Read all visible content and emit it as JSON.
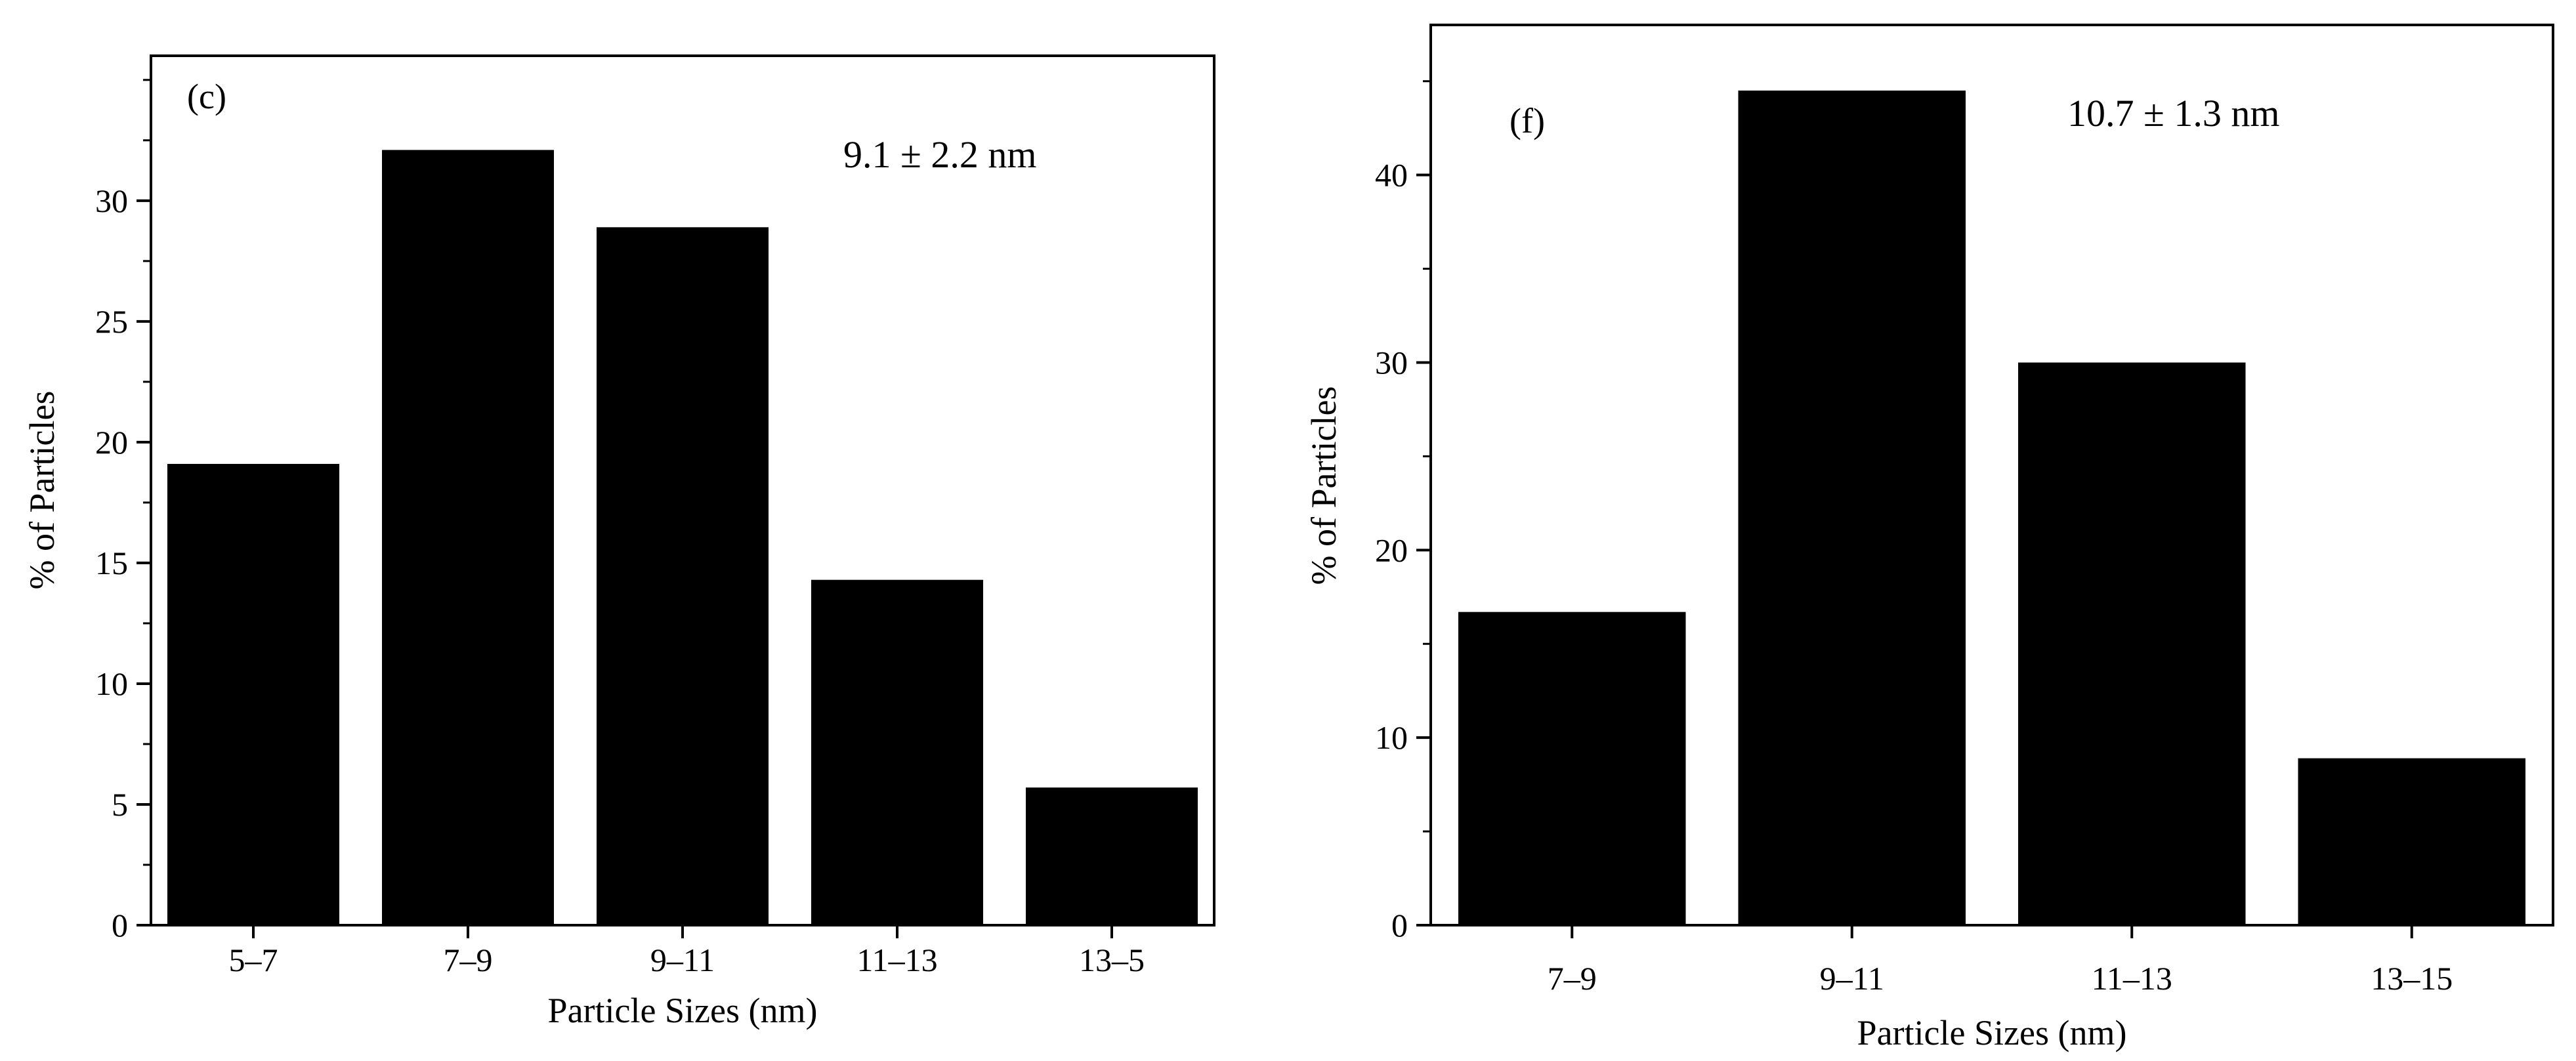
{
  "chart_data": [
    {
      "type": "bar",
      "panel_label": "(c)",
      "annotation": "9.1 ±  2.2 nm",
      "categories": [
        "5–7",
        "7–9",
        "9–11",
        "11–13",
        "13–5"
      ],
      "values": [
        19.1,
        32.1,
        28.9,
        14.3,
        5.7
      ],
      "xlabel": "Particle Sizes (nm)",
      "ylabel": "% of Particles",
      "ylim": [
        0,
        36
      ],
      "yticks": [
        0,
        5,
        10,
        15,
        20,
        25,
        30
      ],
      "bar_color": "#000000",
      "grid": false,
      "legend": "none"
    },
    {
      "type": "bar",
      "panel_label": "(f)",
      "annotation": "10.7 ±  1.3 nm",
      "categories": [
        "7–9",
        "9–11",
        "11–13",
        "13–15"
      ],
      "values": [
        16.7,
        44.5,
        30.0,
        8.9
      ],
      "xlabel": "Particle Sizes (nm)",
      "ylabel": "% of Particles",
      "ylim": [
        0,
        48
      ],
      "yticks": [
        0,
        10,
        20,
        30,
        40
      ],
      "bar_color": "#000000",
      "grid": false,
      "legend": "none"
    }
  ]
}
